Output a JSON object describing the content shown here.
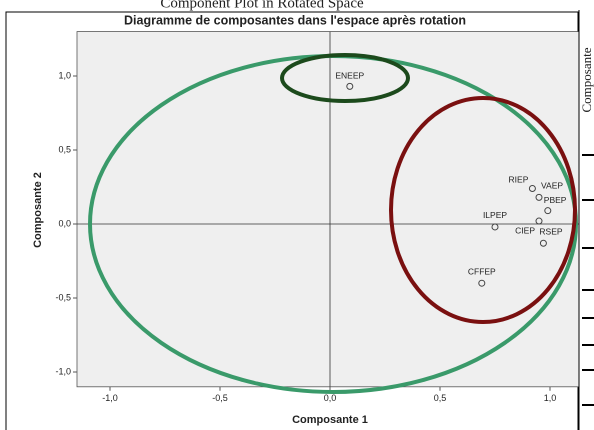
{
  "header_title": "Component Plot in Rotated Space",
  "side_label": "Composante",
  "chart_data": {
    "type": "scatter",
    "title": "Diagramme de composantes dans l'espace après rotation",
    "x_label": "Composante 1",
    "y_label": "Composante 2",
    "xlim": [
      -1.15,
      1.15
    ],
    "ylim": [
      -1.1,
      1.3
    ],
    "xticks": [
      {
        "value": -1,
        "label": "-1,0"
      },
      {
        "value": -0.5,
        "label": "-0,5"
      },
      {
        "value": 0,
        "label": "0,0"
      },
      {
        "value": 0.5,
        "label": "0,5"
      },
      {
        "value": 1,
        "label": "1,0"
      }
    ],
    "yticks": [
      {
        "value": -1,
        "label": "-1,0"
      },
      {
        "value": -0.5,
        "label": "-0,5"
      },
      {
        "value": 0,
        "label": "0,0"
      },
      {
        "value": 0.5,
        "label": "0,5"
      },
      {
        "value": 1,
        "label": "1,0"
      }
    ],
    "zero_lines": true,
    "grid": false,
    "color": "#444444",
    "series": [
      {
        "labels": [
          "ENEEP",
          "RIEP",
          "VAEP",
          "PBEP",
          "ILPEP",
          "CIEP",
          "RSEP",
          "CFFEP"
        ],
        "x": [
          0.09,
          0.92,
          0.95,
          0.99,
          0.75,
          0.95,
          0.97,
          0.69
        ],
        "values": [
          0.93,
          0.24,
          0.18,
          0.09,
          -0.02,
          0.02,
          -0.13,
          -0.4
        ]
      }
    ]
  }
}
